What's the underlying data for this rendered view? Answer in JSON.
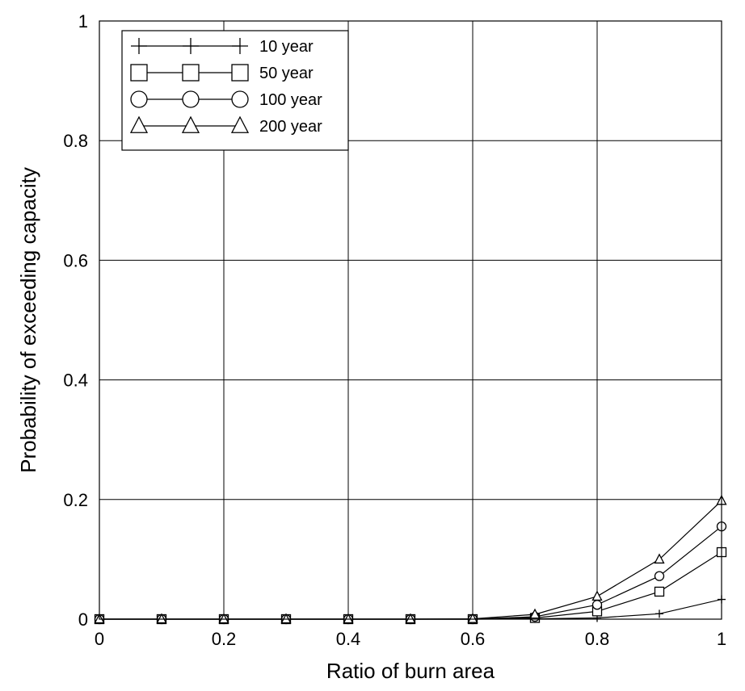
{
  "chart_data": {
    "type": "line",
    "title": "",
    "xlabel": "Ratio of burn area",
    "ylabel": "Probability of exceeding capacity",
    "xlim": [
      0,
      1
    ],
    "ylim": [
      0,
      1
    ],
    "grid": true,
    "legend_position": "top-left",
    "x": [
      0,
      0.1,
      0.2,
      0.3,
      0.4,
      0.5,
      0.6,
      0.7,
      0.8,
      0.9,
      1.0
    ],
    "x_ticks": [
      "0",
      "0.2",
      "0.4",
      "0.6",
      "0.8",
      "1"
    ],
    "y_ticks": [
      "0",
      "0.2",
      "0.4",
      "0.6",
      "0.8",
      "1"
    ],
    "series": [
      {
        "name": "10 year",
        "marker": "plus",
        "values": [
          0,
          0,
          0,
          0,
          0,
          0,
          0,
          0.0005,
          0.002,
          0.009,
          0.033
        ]
      },
      {
        "name": "50 year",
        "marker": "square",
        "values": [
          0,
          0,
          0,
          0,
          0,
          0,
          0,
          0.002,
          0.013,
          0.046,
          0.112
        ]
      },
      {
        "name": "100 year",
        "marker": "circle",
        "values": [
          0,
          0,
          0,
          0,
          0,
          0,
          0,
          0.004,
          0.024,
          0.072,
          0.155
        ]
      },
      {
        "name": "200 year",
        "marker": "triangle",
        "values": [
          0,
          0,
          0,
          0,
          0,
          0,
          0.0005,
          0.008,
          0.038,
          0.1,
          0.198
        ]
      }
    ],
    "colors": {
      "line": "#000000",
      "grid": "#000000",
      "background": "#ffffff"
    }
  }
}
